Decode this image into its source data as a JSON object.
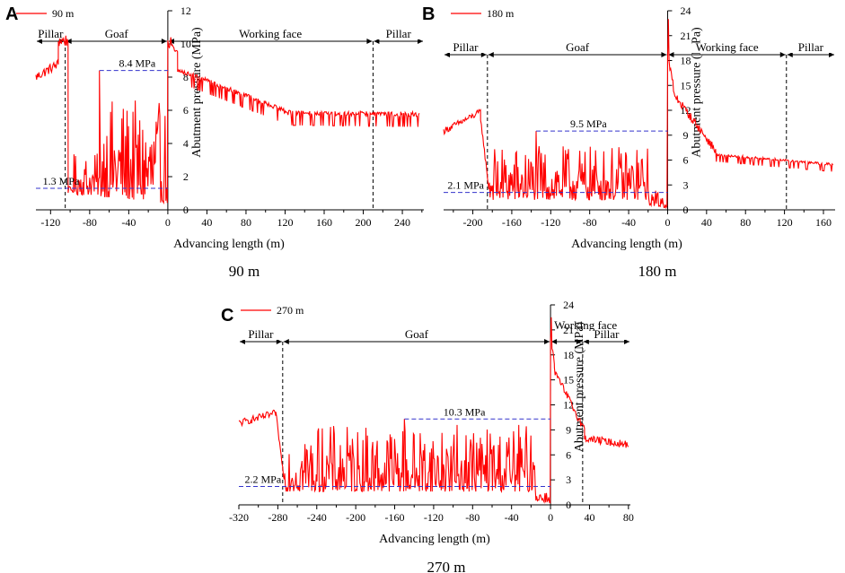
{
  "colors": {
    "series": "#ff0000",
    "annotation_line": "#3333cc",
    "axis": "#000000"
  },
  "chart_data": [
    {
      "panel_label": "A",
      "caption": "90 m",
      "type": "line",
      "series": [
        {
          "name": "90 m"
        }
      ],
      "xlabel": "Advancing length (m)",
      "ylabel": "Abutment pressure (MPa)",
      "xlim": [
        -135,
        262
      ],
      "ylim": [
        0,
        12
      ],
      "xticks": [
        -120,
        -80,
        -40,
        0,
        40,
        80,
        120,
        160,
        200,
        240
      ],
      "yticks": [
        0,
        2,
        4,
        6,
        8,
        10,
        12
      ],
      "zones": [
        {
          "label": "Pillar",
          "from": -135,
          "to": -105
        },
        {
          "label": "Goaf",
          "from": -105,
          "to": 0
        },
        {
          "label": "Working face",
          "from": 0,
          "to": 210
        },
        {
          "label": "Pillar",
          "from": 210,
          "to": 262
        }
      ],
      "boundaries": [
        -105,
        0,
        210
      ],
      "annotations": [
        {
          "label": "8.4 MPa",
          "value": 8.4,
          "from": -70,
          "to": 0,
          "text_x": -50
        },
        {
          "label": "1.3 MPa",
          "value": 1.3,
          "from": -135,
          "to": 0,
          "text_x": -128
        }
      ],
      "profile": [
        {
          "from": -135,
          "to": -112,
          "base": 8.0,
          "end": 8.8,
          "amp": 0.6,
          "mode": "noise"
        },
        {
          "from": -112,
          "to": -102,
          "base": 10.2,
          "end": 10.2,
          "amp": 0.8,
          "mode": "noise"
        },
        {
          "from": -102,
          "to": -96,
          "base": 1.2,
          "end": 1.2,
          "amp": 0.4,
          "mode": "noise"
        },
        {
          "from": -96,
          "to": -70,
          "base": 0.9,
          "end": 0.9,
          "amp": 2.5,
          "mode": "spike"
        },
        {
          "from": -70,
          "to": 0,
          "base": 0.8,
          "end": 0.4,
          "amp": 6.0,
          "mode": "spike"
        },
        {
          "from": 0,
          "to": 10,
          "base": 10.0,
          "end": 9.4,
          "amp": 0.5,
          "mode": "noise"
        },
        {
          "from": 10,
          "to": 120,
          "base": 8.6,
          "end": 6.1,
          "amp": 0.9,
          "mode": "dip"
        },
        {
          "from": 120,
          "to": 258,
          "base": 6.0,
          "end": 5.9,
          "amp": 0.9,
          "mode": "dip"
        }
      ],
      "peaks": [
        {
          "x": -70,
          "y": 8.4
        },
        {
          "x": -104,
          "y": 10.5
        },
        {
          "x": 3,
          "y": 10.4
        }
      ],
      "legend": "top-left"
    },
    {
      "panel_label": "B",
      "caption": "180 m",
      "type": "line",
      "series": [
        {
          "name": "180 m"
        }
      ],
      "xlabel": "Advancing length (m)",
      "ylabel": "Abutment pressure (MPa)",
      "xlim": [
        -230,
        172
      ],
      "ylim": [
        0,
        24
      ],
      "xticks": [
        -200,
        -160,
        -120,
        -80,
        -40,
        0,
        40,
        80,
        120,
        160
      ],
      "yticks": [
        0,
        3,
        6,
        9,
        12,
        15,
        18,
        21,
        24
      ],
      "zones": [
        {
          "label": "Pillar",
          "from": -230,
          "to": -185
        },
        {
          "label": "Goaf",
          "from": -185,
          "to": 0
        },
        {
          "label": "Working face",
          "from": 0,
          "to": 122
        },
        {
          "label": "Pillar",
          "from": 122,
          "to": 172
        }
      ],
      "boundaries": [
        -185,
        0,
        122
      ],
      "annotations": [
        {
          "label": "9.5 MPa",
          "value": 9.5,
          "from": -135,
          "to": 0,
          "text_x": -100
        },
        {
          "label": "2.1 MPa",
          "value": 2.1,
          "from": -230,
          "to": 0,
          "text_x": -226
        }
      ],
      "profile": [
        {
          "from": -230,
          "to": -192,
          "base": 9.5,
          "end": 11.8,
          "amp": 0.8,
          "mode": "noise"
        },
        {
          "from": -192,
          "to": -183,
          "base": 11.0,
          "end": 2.0,
          "amp": 0.6,
          "mode": "noise"
        },
        {
          "from": -183,
          "to": -20,
          "base": 1.2,
          "end": 1.2,
          "amp": 6.5,
          "mode": "spike"
        },
        {
          "from": -20,
          "to": 0,
          "base": 0.6,
          "end": 0.2,
          "amp": 2.0,
          "mode": "spike"
        },
        {
          "from": 0,
          "to": 6,
          "base": 18.5,
          "end": 15.0,
          "amp": 1.0,
          "mode": "noise"
        },
        {
          "from": 6,
          "to": 50,
          "base": 14.0,
          "end": 7.0,
          "amp": 1.0,
          "mode": "noise"
        },
        {
          "from": 50,
          "to": 170,
          "base": 6.8,
          "end": 5.6,
          "amp": 1.0,
          "mode": "dip"
        }
      ],
      "peaks": [
        {
          "x": -135,
          "y": 9.5
        },
        {
          "x": 1,
          "y": 23.0
        }
      ],
      "legend": "top-left"
    },
    {
      "panel_label": "C",
      "caption": "270 m",
      "type": "line",
      "series": [
        {
          "name": "270 m"
        }
      ],
      "xlabel": "Advancing length (m)",
      "ylabel": "Abutment pressure (MPa)",
      "xlim": [
        -320,
        82
      ],
      "ylim": [
        0,
        24
      ],
      "xticks": [
        -320,
        -280,
        -240,
        -200,
        -160,
        -120,
        -80,
        -40,
        0,
        40,
        80
      ],
      "yticks": [
        0,
        3,
        6,
        9,
        12,
        15,
        18,
        21,
        24
      ],
      "zones": [
        {
          "label": "Pillar",
          "from": -320,
          "to": -275
        },
        {
          "label": "Goaf",
          "from": -275,
          "to": 0
        },
        {
          "label": "Working face",
          "from": 0,
          "to": 33
        },
        {
          "label": "Pillar",
          "from": 33,
          "to": 82
        }
      ],
      "boundaries": [
        -275,
        0,
        33
      ],
      "annotations": [
        {
          "label": "10.3 MPa",
          "value": 10.3,
          "from": -150,
          "to": 0,
          "text_x": -110
        },
        {
          "label": "2.2 MPa",
          "value": 2.2,
          "from": -320,
          "to": 0,
          "text_x": -314
        }
      ],
      "profile": [
        {
          "from": -320,
          "to": -282,
          "base": 9.8,
          "end": 11.0,
          "amp": 0.9,
          "mode": "noise"
        },
        {
          "from": -282,
          "to": -273,
          "base": 11.0,
          "end": 2.5,
          "amp": 0.6,
          "mode": "noise"
        },
        {
          "from": -273,
          "to": -15,
          "base": 1.6,
          "end": 1.6,
          "amp": 8.0,
          "mode": "spike"
        },
        {
          "from": -15,
          "to": 0,
          "base": 0.5,
          "end": 0.2,
          "amp": 1.5,
          "mode": "spike"
        },
        {
          "from": 0,
          "to": 4,
          "base": 20.0,
          "end": 17.0,
          "amp": 1.0,
          "mode": "noise"
        },
        {
          "from": 4,
          "to": 35,
          "base": 16.0,
          "end": 9.0,
          "amp": 1.0,
          "mode": "noise"
        },
        {
          "from": 35,
          "to": 80,
          "base": 8.0,
          "end": 7.2,
          "amp": 0.9,
          "mode": "noise"
        }
      ],
      "peaks": [
        {
          "x": -150,
          "y": 10.3
        },
        {
          "x": 1,
          "y": 22.5
        }
      ],
      "legend": "top-left"
    }
  ]
}
